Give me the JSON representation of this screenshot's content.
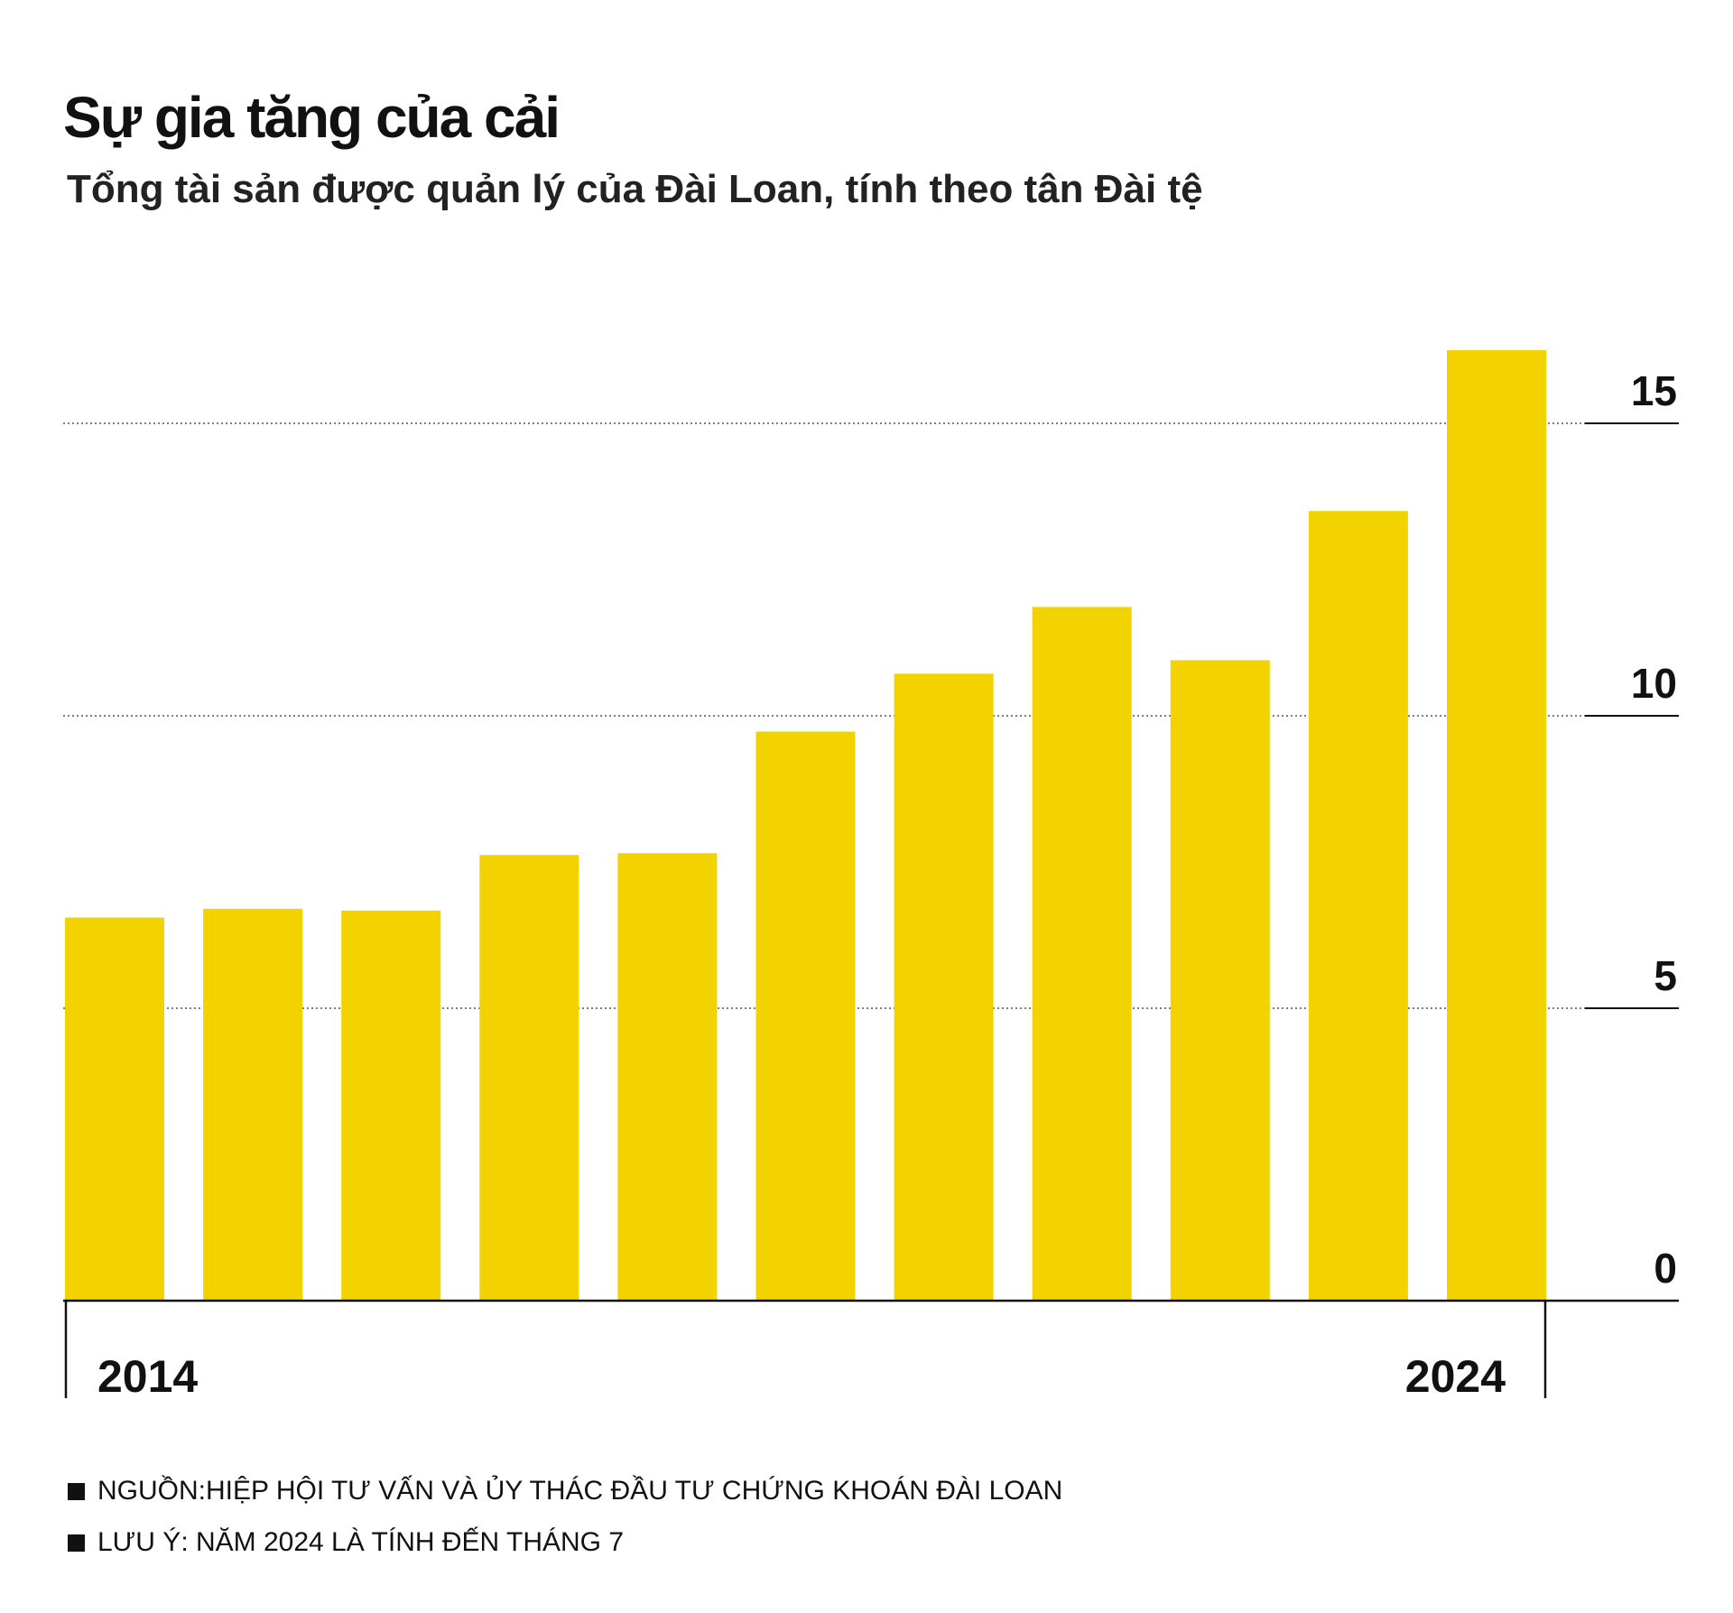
{
  "title": "Sự gia tăng của cải",
  "subtitle": "Tổng tài sản được quản lý của Đài Loan, tính theo tân Đài tệ",
  "colors": {
    "bar": "#F2D300",
    "text": "#111111",
    "grid": "#555555"
  },
  "chart_data": {
    "type": "bar",
    "title": "Sự gia tăng của cải",
    "subtitle": "Tổng tài sản được quản lý của Đài Loan, tính theo tân Đài tệ",
    "categories": [
      "2014",
      "2015",
      "2016",
      "2017",
      "2018",
      "2019",
      "2020",
      "2021",
      "2022",
      "2023",
      "2024"
    ],
    "values": [
      6.55,
      6.7,
      6.67,
      7.62,
      7.65,
      9.73,
      10.72,
      11.86,
      10.95,
      13.5,
      16.25
    ],
    "x_tick_labels": [
      "2014",
      "2024"
    ],
    "y_ticks": [
      0,
      5,
      10,
      15
    ],
    "y_tick_labels": [
      "0",
      "5",
      "10",
      "15"
    ],
    "ylim": [
      0,
      16.5
    ],
    "y_axis_side": "right",
    "grid": "dotted horizontal at 5, 10, 15",
    "xlabel": "",
    "ylabel": ""
  },
  "notes": [
    "NGUỒN:HIỆP HỘI TƯ VẤN VÀ ỦY THÁC ĐẦU TƯ CHỨNG KHOÁN ĐÀI LOAN",
    "LƯU Ý: NĂM 2024 LÀ TÍNH ĐẾN THÁNG 7"
  ]
}
